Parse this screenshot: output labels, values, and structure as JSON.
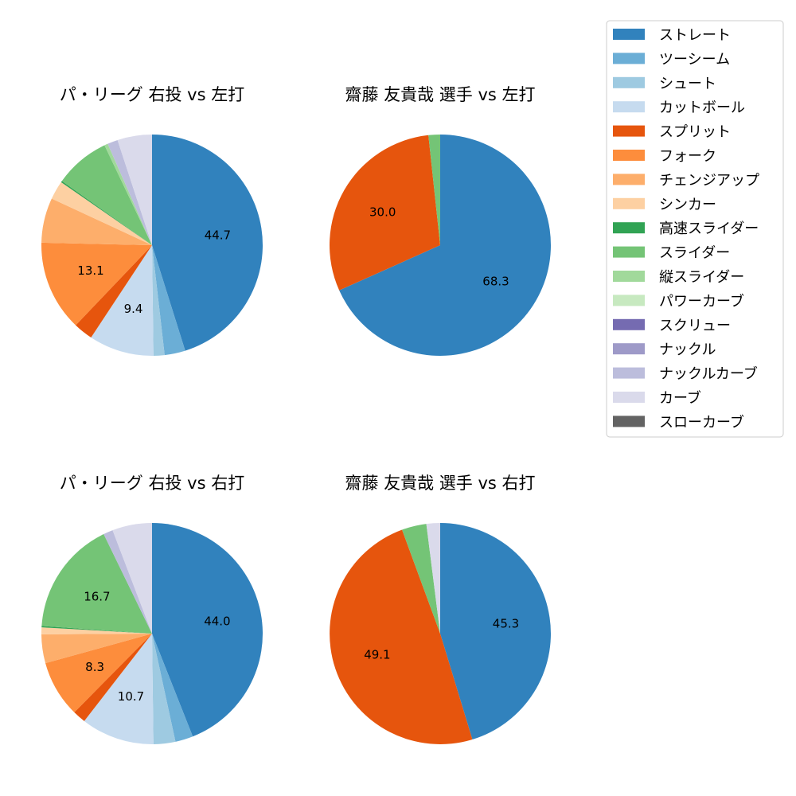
{
  "legend": {
    "placement": "top-right",
    "items": [
      {
        "label": "ストレート",
        "color": "#3182bd"
      },
      {
        "label": "ツーシーム",
        "color": "#6baed6"
      },
      {
        "label": "シュート",
        "color": "#9ecae1"
      },
      {
        "label": "カットボール",
        "color": "#c6dbef"
      },
      {
        "label": "スプリット",
        "color": "#e6550d"
      },
      {
        "label": "フォーク",
        "color": "#fd8d3c"
      },
      {
        "label": "チェンジアップ",
        "color": "#fdae6b"
      },
      {
        "label": "シンカー",
        "color": "#fdd0a2"
      },
      {
        "label": "高速スライダー",
        "color": "#31a354"
      },
      {
        "label": "スライダー",
        "color": "#74c476"
      },
      {
        "label": "縦スライダー",
        "color": "#a1d99b"
      },
      {
        "label": "パワーカーブ",
        "color": "#c7e9c0"
      },
      {
        "label": "スクリュー",
        "color": "#756bb1"
      },
      {
        "label": "ナックル",
        "color": "#9e9ac8"
      },
      {
        "label": "ナックルカーブ",
        "color": "#bcbddc"
      },
      {
        "label": "カーブ",
        "color": "#dadaeb"
      },
      {
        "label": "スローカーブ",
        "color": "#636363"
      }
    ]
  },
  "chart_data": [
    {
      "type": "pie",
      "title": "パ・リーグ 右投 vs 左打",
      "slices": [
        {
          "label": "ストレート",
          "value": 44.7,
          "show_label": true
        },
        {
          "label": "ツーシーム",
          "value": 3.0,
          "show_label": false
        },
        {
          "label": "シュート",
          "value": 1.6,
          "show_label": false
        },
        {
          "label": "カットボール",
          "value": 9.4,
          "show_label": true
        },
        {
          "label": "スプリット",
          "value": 2.8,
          "show_label": false
        },
        {
          "label": "フォーク",
          "value": 13.1,
          "show_label": true
        },
        {
          "label": "チェンジアップ",
          "value": 6.5,
          "show_label": false
        },
        {
          "label": "シンカー",
          "value": 2.7,
          "show_label": false
        },
        {
          "label": "高速スライダー",
          "value": 0.2,
          "show_label": false
        },
        {
          "label": "スライダー",
          "value": 8.0,
          "show_label": false
        },
        {
          "label": "縦スライダー",
          "value": 0.5,
          "show_label": false
        },
        {
          "label": "ナックルカーブ",
          "value": 1.5,
          "show_label": false
        },
        {
          "label": "カーブ",
          "value": 5.0,
          "show_label": false
        }
      ]
    },
    {
      "type": "pie",
      "title": "齋藤 友貴哉 選手 vs 左打",
      "slices": [
        {
          "label": "ストレート",
          "value": 68.3,
          "show_label": true
        },
        {
          "label": "スプリット",
          "value": 30.0,
          "show_label": true
        },
        {
          "label": "スライダー",
          "value": 1.7,
          "show_label": false
        }
      ]
    },
    {
      "type": "pie",
      "title": "パ・リーグ 右投 vs 右打",
      "slices": [
        {
          "label": "ストレート",
          "value": 44.0,
          "show_label": true
        },
        {
          "label": "ツーシーム",
          "value": 2.6,
          "show_label": false
        },
        {
          "label": "シュート",
          "value": 3.2,
          "show_label": false
        },
        {
          "label": "カットボール",
          "value": 10.7,
          "show_label": true
        },
        {
          "label": "スプリット",
          "value": 1.9,
          "show_label": false
        },
        {
          "label": "フォーク",
          "value": 8.3,
          "show_label": true
        },
        {
          "label": "チェンジアップ",
          "value": 4.2,
          "show_label": false
        },
        {
          "label": "シンカー",
          "value": 1.0,
          "show_label": false
        },
        {
          "label": "高速スライダー",
          "value": 0.2,
          "show_label": false
        },
        {
          "label": "スライダー",
          "value": 16.7,
          "show_label": true
        },
        {
          "label": "ナックルカーブ",
          "value": 1.4,
          "show_label": false
        },
        {
          "label": "カーブ",
          "value": 5.8,
          "show_label": false
        }
      ]
    },
    {
      "type": "pie",
      "title": "齋藤 友貴哉 選手 vs 右打",
      "slices": [
        {
          "label": "ストレート",
          "value": 45.3,
          "show_label": true
        },
        {
          "label": "スプリット",
          "value": 49.1,
          "show_label": true
        },
        {
          "label": "スライダー",
          "value": 3.6,
          "show_label": false
        },
        {
          "label": "カーブ",
          "value": 2.0,
          "show_label": false
        }
      ]
    }
  ]
}
